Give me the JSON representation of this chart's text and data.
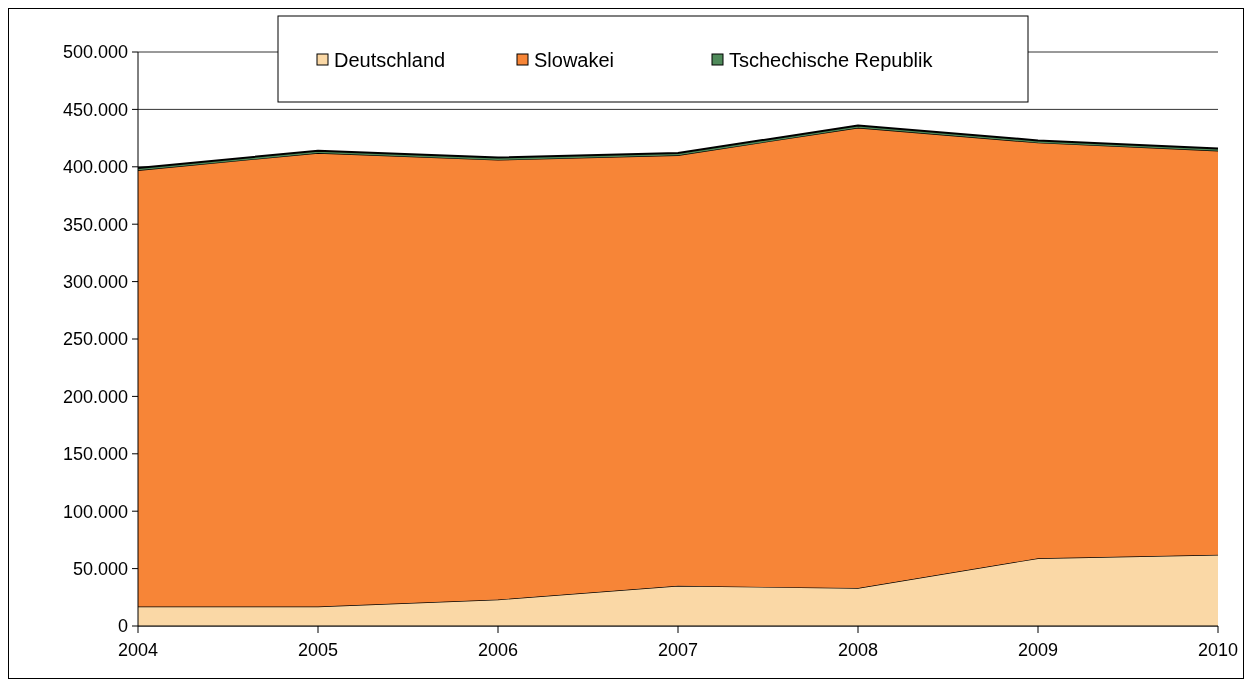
{
  "chart_data": {
    "type": "area",
    "stacked": true,
    "categories": [
      "2004",
      "2005",
      "2006",
      "2007",
      "2008",
      "2009",
      "2010"
    ],
    "series": [
      {
        "name": "Deutschland",
        "color": "#fad8a6",
        "values": [
          17000,
          17000,
          23000,
          35000,
          33000,
          59000,
          62000
        ]
      },
      {
        "name": "Slowakei",
        "color": "#f78537",
        "values": [
          380000,
          395000,
          383000,
          375000,
          401000,
          362000,
          352000
        ]
      },
      {
        "name": "Tschechische Republik",
        "color": "#4f8a5a",
        "values": [
          2000,
          2000,
          2000,
          2000,
          2000,
          2000,
          2000
        ]
      }
    ],
    "ylim": [
      0,
      500000
    ],
    "yticks": [
      0,
      {
        "value": 50000,
        "label": "50.000"
      },
      {
        "value": 100000,
        "label": "100.000"
      },
      {
        "value": 150000,
        "label": "150.000"
      },
      {
        "value": 200000,
        "label": "200.000"
      },
      {
        "value": 250000,
        "label": "250.000"
      },
      {
        "value": 300000,
        "label": "300.000"
      },
      {
        "value": 350000,
        "label": "350.000"
      },
      {
        "value": 400000,
        "label": "400.000"
      },
      {
        "value": 450000,
        "label": "450.000"
      },
      {
        "value": 500000,
        "label": "500.000"
      }
    ],
    "grid": "y",
    "legend": "top"
  }
}
